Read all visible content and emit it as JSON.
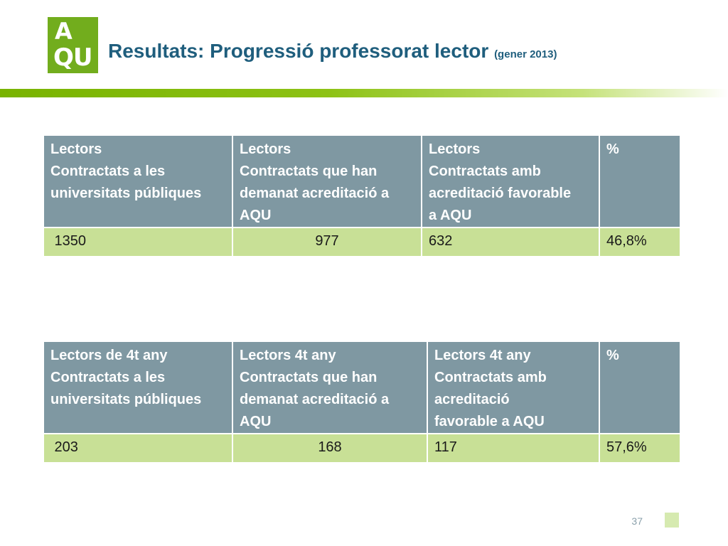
{
  "logo": {
    "line1": "A",
    "line2": "QU"
  },
  "title": {
    "main": "Resultats: Progressió professorat lector",
    "sub": "(gener 2013)"
  },
  "tables": [
    {
      "headers": [
        [
          "Lectors",
          "Contractats a les",
          "universitats públiques"
        ],
        [
          "Lectors",
          "Contractats  que han",
          "demanat acreditació a",
          "AQU"
        ],
        [
          " Lectors",
          "Contractats   amb",
          "acreditació favorable",
          "a AQU"
        ],
        [
          " %"
        ]
      ],
      "row": [
        " 1350",
        "977",
        "632",
        "46,8%"
      ]
    },
    {
      "headers": [
        [
          "Lectors  de 4t any",
          "Contractats a les",
          "universitats públiques"
        ],
        [
          "Lectors 4t any",
          "Contractats  que han",
          "demanat acreditació a",
          "AQU"
        ],
        [
          " Lectors  4t any",
          "Contractats   amb",
          "acreditació",
          "favorable a AQU"
        ],
        [
          " %"
        ]
      ],
      "row": [
        " 203",
        "168",
        "117",
        "57,6%"
      ]
    }
  ],
  "page_number": "37",
  "colors": {
    "brand_green": "#72ad1d",
    "title_blue": "#1f5e7d",
    "header_gray": "#7f98a2",
    "row_green": "#c8e096"
  }
}
